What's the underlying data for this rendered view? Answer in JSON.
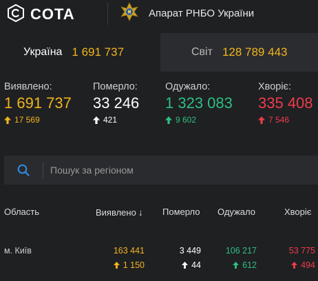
{
  "header": {
    "logo_text": "COTA",
    "org_name": "Апарат РНБО України"
  },
  "tabs": [
    {
      "label": "Україна",
      "value": "1 691 737",
      "active": true
    },
    {
      "label": "Світ",
      "value": "128 789 443",
      "active": false
    }
  ],
  "stats": [
    {
      "label": "Виявлено:",
      "value": "1 691 737",
      "delta": "17 569",
      "color": "#f2b51d"
    },
    {
      "label": "Померло:",
      "value": "33 246",
      "delta": "421",
      "color": "#ffffff"
    },
    {
      "label": "Одужало:",
      "value": "1 323 083",
      "delta": "9 602",
      "color": "#2dbf83"
    },
    {
      "label": "Хворіє:",
      "value": "335 408",
      "delta": "7 546",
      "color": "#ef3b4c"
    }
  ],
  "search": {
    "placeholder": "Пошук за регіоном",
    "value": ""
  },
  "table": {
    "columns": {
      "region": "Область",
      "confirmed": "Виявлено",
      "deaths": "Померло",
      "recovered": "Одужало",
      "sick": "Хворіє"
    },
    "sort_indicator": "↓",
    "rows": [
      {
        "region": "м. Київ",
        "confirmed": "163 441",
        "confirmed_delta": "1 150",
        "deaths": "3 449",
        "deaths_delta": "44",
        "recovered": "106 217",
        "recovered_delta": "612",
        "sick": "53 775",
        "sick_delta": "494"
      }
    ]
  }
}
